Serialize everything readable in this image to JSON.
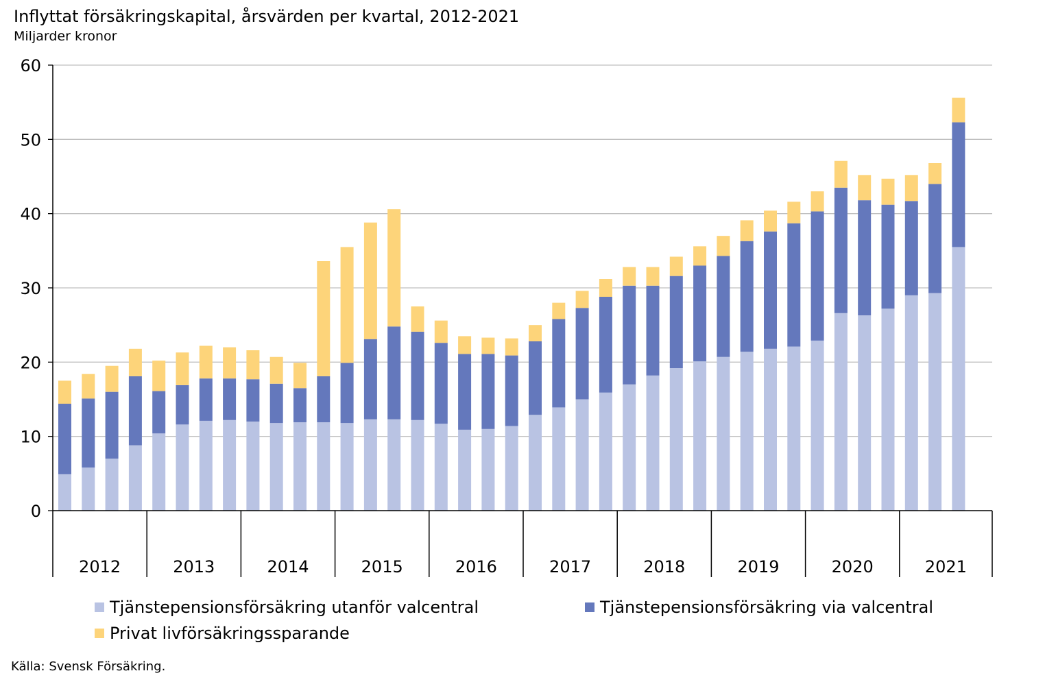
{
  "title": "Inflyttat försäkringskapital, årsvärden per kvartal, 2012-2021",
  "subtitle": "Miljarder kronor",
  "source": "Källa: Svensk Försäkring.",
  "chart_data": {
    "type": "bar",
    "stacked": true,
    "title": "Inflyttat försäkringskapital, årsvärden per kvartal, 2012-2021",
    "ylabel": "Miljarder kronor",
    "ylim": [
      0,
      60
    ],
    "yticks": [
      0,
      10,
      20,
      30,
      40,
      50,
      60
    ],
    "grid": true,
    "legend_position": "bottom",
    "year_labels": [
      "2012",
      "2013",
      "2014",
      "2015",
      "2016",
      "2017",
      "2018",
      "2019",
      "2020",
      "2021"
    ],
    "series": [
      {
        "name": "Tjänstepensionsförsäkring utanför valcentral",
        "color": "#b9c3e3",
        "values": [
          4.9,
          5.8,
          7.0,
          8.8,
          10.4,
          11.6,
          12.1,
          12.2,
          12.0,
          11.8,
          11.9,
          11.9,
          11.8,
          12.3,
          12.3,
          12.2,
          11.7,
          10.9,
          11.0,
          11.4,
          12.9,
          13.9,
          15.0,
          15.9,
          17.0,
          18.2,
          19.2,
          20.1,
          20.7,
          21.4,
          21.8,
          22.1,
          22.9,
          26.6,
          26.3,
          27.2,
          29.0,
          29.3,
          35.5
        ]
      },
      {
        "name": "Tjänstepensionsförsäkring via valcentral",
        "color": "#6478bc",
        "values": [
          9.5,
          9.3,
          9.0,
          9.3,
          5.7,
          5.3,
          5.7,
          5.6,
          5.7,
          5.3,
          4.6,
          6.2,
          8.1,
          10.8,
          12.5,
          11.9,
          10.9,
          10.2,
          10.1,
          9.5,
          9.9,
          11.9,
          12.3,
          12.9,
          13.3,
          12.1,
          12.4,
          12.9,
          13.6,
          14.9,
          15.8,
          16.6,
          17.4,
          16.9,
          15.5,
          14.0,
          12.7,
          14.7,
          16.8
        ]
      },
      {
        "name": "Privat livförsäkringssparande",
        "color": "#fdd47a",
        "values": [
          3.1,
          3.3,
          3.5,
          3.7,
          4.1,
          4.4,
          4.4,
          4.2,
          3.9,
          3.6,
          3.4,
          15.5,
          15.6,
          15.7,
          15.8,
          3.4,
          3.0,
          2.4,
          2.2,
          2.3,
          2.2,
          2.2,
          2.3,
          2.4,
          2.5,
          2.5,
          2.6,
          2.6,
          2.7,
          2.8,
          2.8,
          2.9,
          2.7,
          3.6,
          3.4,
          3.5,
          3.5,
          2.8,
          3.3
        ]
      }
    ]
  }
}
